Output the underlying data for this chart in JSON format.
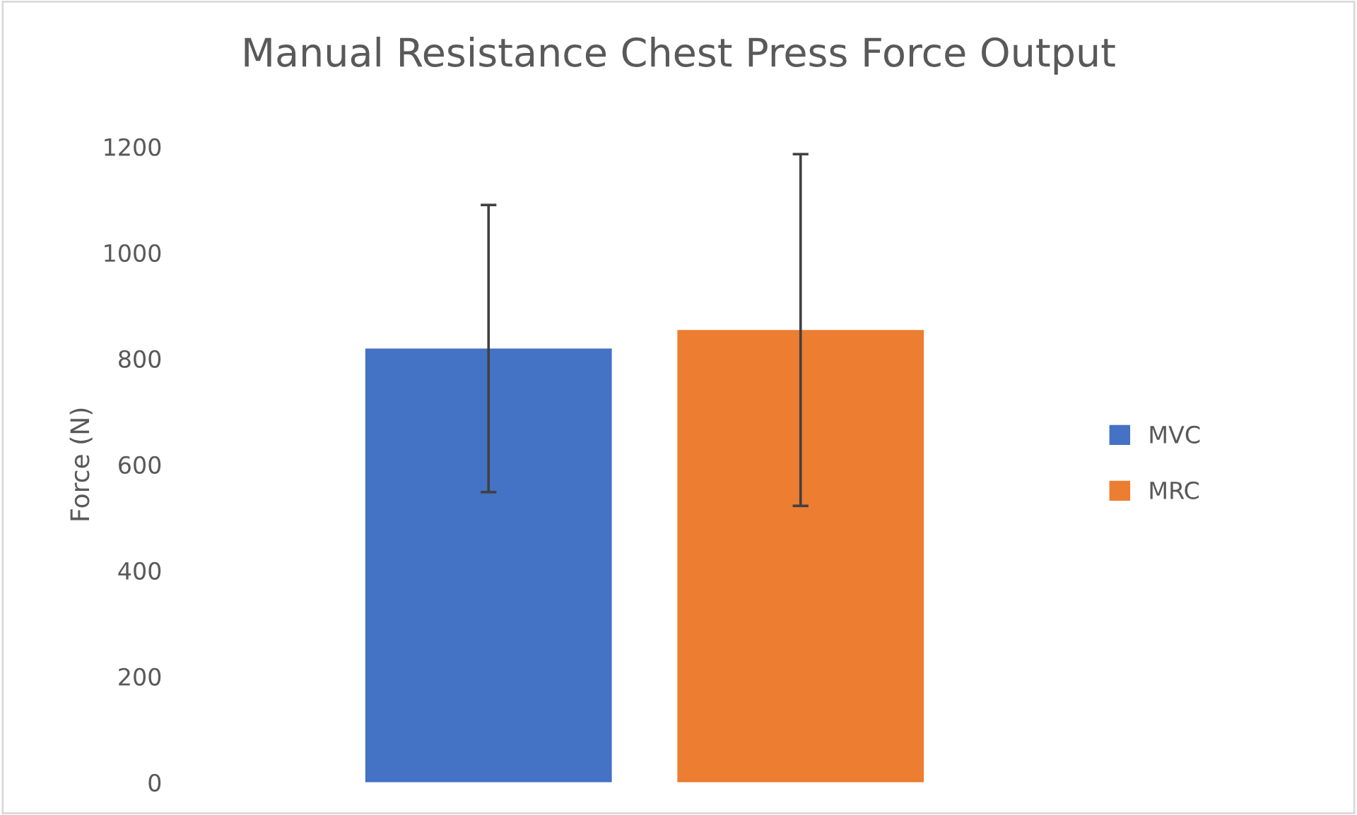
{
  "chart_data": {
    "type": "bar",
    "title": "Manual Resistance Chest Press Force Output",
    "ylabel": "Force (N)",
    "categories": [
      null
    ],
    "series": [
      {
        "name": "MVC",
        "color": "#4472c4",
        "values": [
          819
        ],
        "errors": [
          271
        ]
      },
      {
        "name": "MRC",
        "color": "#ed7d31",
        "values": [
          854
        ],
        "errors": [
          332
        ]
      }
    ],
    "ylim": [
      0,
      1200
    ],
    "yticks": [
      0,
      200,
      400,
      600,
      800,
      1000,
      1200
    ],
    "grid": false,
    "legend": "right"
  }
}
